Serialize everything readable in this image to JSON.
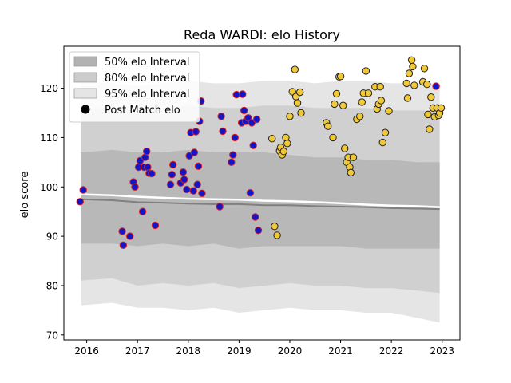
{
  "chart_data": {
    "type": "scatter",
    "title": "Reda WARDI: elo History",
    "xlabel": "",
    "ylabel": "elo score",
    "xlim": [
      2015.55,
      2023.35
    ],
    "ylim": [
      69.0,
      128.5
    ],
    "x_ticks": [
      2016,
      2017,
      2018,
      2019,
      2020,
      2021,
      2022,
      2023
    ],
    "x_tick_labels": [
      "2016",
      "2017",
      "2018",
      "2019",
      "2020",
      "2021",
      "2022",
      "2023"
    ],
    "y_ticks": [
      70,
      80,
      90,
      100,
      110,
      120
    ],
    "y_tick_labels": [
      "70",
      "80",
      "90",
      "100",
      "110",
      "120"
    ],
    "grid": false,
    "legend": {
      "placement": "top-left",
      "entries": [
        {
          "label": "50% elo Interval",
          "color": "#b2b2b2",
          "kind": "patch"
        },
        {
          "label": "80% elo Interval",
          "color": "#cccccc",
          "kind": "patch"
        },
        {
          "label": "95% elo Interval",
          "color": "#e5e5e5",
          "kind": "patch"
        },
        {
          "label": "Post Match elo",
          "color": "#000000",
          "kind": "marker"
        }
      ]
    },
    "colors": {
      "band95": "#e5e5e5",
      "band80": "#d0d0d0",
      "band50": "#b8b8b8",
      "median_line": "#808080",
      "mean_line": "#ffffff",
      "early_fill": "#1515c8",
      "early_edge": "#d62020",
      "late_fill": "#f0c838",
      "late_edge": "#202020"
    },
    "bands": {
      "x": [
        2015.88,
        2016.5,
        2017.0,
        2017.5,
        2018.0,
        2018.5,
        2019.0,
        2019.5,
        2020.0,
        2020.5,
        2021.0,
        2021.5,
        2022.0,
        2022.5,
        2022.95
      ],
      "p95_low": [
        76.0,
        76.5,
        75.5,
        75.5,
        75.0,
        75.5,
        74.5,
        75.0,
        75.5,
        75.0,
        75.0,
        74.5,
        74.5,
        73.5,
        72.5
      ],
      "p95_high": [
        121.0,
        121.0,
        120.5,
        121.0,
        121.5,
        121.0,
        121.0,
        121.5,
        121.5,
        121.0,
        121.5,
        121.5,
        121.0,
        121.0,
        121.0
      ],
      "p80_low": [
        81.0,
        81.5,
        80.0,
        80.5,
        80.0,
        80.5,
        79.5,
        80.0,
        80.5,
        80.0,
        80.0,
        79.5,
        79.5,
        79.0,
        78.5
      ],
      "p80_high": [
        116.0,
        116.0,
        115.5,
        116.0,
        116.5,
        116.0,
        116.0,
        116.5,
        116.5,
        116.0,
        116.0,
        116.0,
        115.5,
        115.5,
        115.5
      ],
      "p50_low": [
        88.5,
        88.5,
        88.0,
        88.5,
        88.0,
        88.5,
        87.5,
        88.0,
        88.0,
        88.0,
        88.0,
        87.5,
        87.5,
        87.5,
        87.5
      ],
      "p50_high": [
        107.0,
        107.5,
        107.0,
        107.0,
        107.5,
        107.0,
        107.0,
        107.0,
        106.5,
        106.0,
        106.0,
        105.5,
        105.5,
        105.0,
        105.0
      ],
      "median": [
        97.5,
        97.3,
        96.9,
        96.8,
        96.6,
        96.5,
        96.5,
        96.3,
        96.3,
        96.1,
        96.0,
        95.9,
        95.7,
        95.6,
        95.5
      ],
      "mean": [
        98.5,
        98.3,
        98.0,
        97.8,
        97.6,
        97.5,
        97.4,
        97.2,
        97.1,
        96.9,
        96.7,
        96.4,
        96.2,
        96.1,
        95.9
      ]
    },
    "series": [
      {
        "style": "early",
        "x": [
          2015.87,
          2015.93,
          2016.7,
          2016.72,
          2016.85,
          2016.92,
          2016.95,
          2017.02,
          2017.05,
          2017.1,
          2017.13,
          2017.15,
          2017.18,
          2017.2,
          2017.23,
          2017.28,
          2017.35,
          2017.65,
          2017.68,
          2017.7,
          2017.85,
          2017.9,
          2017.92,
          2017.97,
          2018.02,
          2018.05,
          2018.1,
          2018.12,
          2018.15,
          2018.18,
          2018.2,
          2018.22,
          2018.25,
          2018.27,
          2018.62,
          2018.65,
          2018.68,
          2018.85,
          2018.88,
          2018.92,
          2018.95,
          2019.05,
          2019.07,
          2019.1,
          2019.13,
          2019.18,
          2019.22,
          2019.25,
          2019.28,
          2019.32,
          2019.35,
          2019.38,
          2022.88
        ],
        "y": [
          97.0,
          99.4,
          91.0,
          88.2,
          90.0,
          101.0,
          100.0,
          104.0,
          105.3,
          95.0,
          104.0,
          106.0,
          107.2,
          104.0,
          102.8,
          102.7,
          92.2,
          100.5,
          102.5,
          104.5,
          100.8,
          103.0,
          101.5,
          99.5,
          106.3,
          111.0,
          99.2,
          107.0,
          111.2,
          100.5,
          104.2,
          113.3,
          117.4,
          98.7,
          96.0,
          114.3,
          111.3,
          105.0,
          106.5,
          110.0,
          118.7,
          113.0,
          118.8,
          115.5,
          113.3,
          114.0,
          98.8,
          113.0,
          108.4,
          93.9,
          113.7,
          91.2,
          120.4
        ]
      },
      {
        "style": "late",
        "x": [
          2019.65,
          2019.7,
          2019.75,
          2019.8,
          2019.82,
          2019.85,
          2019.88,
          2019.92,
          2019.95,
          2020.0,
          2020.05,
          2020.1,
          2020.12,
          2020.15,
          2020.2,
          2020.22,
          2020.72,
          2020.75,
          2020.85,
          2020.88,
          2020.92,
          2020.97,
          2021.0,
          2021.05,
          2021.08,
          2021.12,
          2021.15,
          2021.18,
          2021.2,
          2021.25,
          2021.32,
          2021.38,
          2021.42,
          2021.45,
          2021.5,
          2021.55,
          2021.68,
          2021.72,
          2021.75,
          2021.78,
          2021.8,
          2021.83,
          2021.88,
          2021.95,
          2022.3,
          2022.32,
          2022.35,
          2022.4,
          2022.42,
          2022.45,
          2022.62,
          2022.65,
          2022.7,
          2022.72,
          2022.75,
          2022.78,
          2022.82,
          2022.85,
          2022.9,
          2022.93,
          2022.95,
          2022.98
        ],
        "y": [
          109.8,
          92.0,
          90.2,
          107.3,
          108.0,
          106.5,
          107.2,
          110.0,
          108.8,
          114.3,
          119.3,
          123.8,
          118.3,
          117.0,
          119.2,
          115.0,
          113.0,
          112.3,
          110.0,
          116.8,
          118.9,
          122.3,
          122.4,
          116.5,
          107.8,
          105.0,
          106.0,
          104.0,
          102.9,
          106.0,
          113.7,
          114.3,
          117.2,
          119.0,
          123.5,
          119.0,
          120.3,
          115.8,
          116.8,
          120.3,
          117.5,
          109.0,
          111.0,
          115.4,
          121.0,
          118.0,
          123.0,
          125.7,
          124.4,
          120.6,
          121.3,
          124.0,
          120.8,
          114.7,
          111.7,
          118.2,
          116.0,
          114.2,
          116.0,
          114.5,
          115.0,
          116.0
        ]
      }
    ]
  }
}
